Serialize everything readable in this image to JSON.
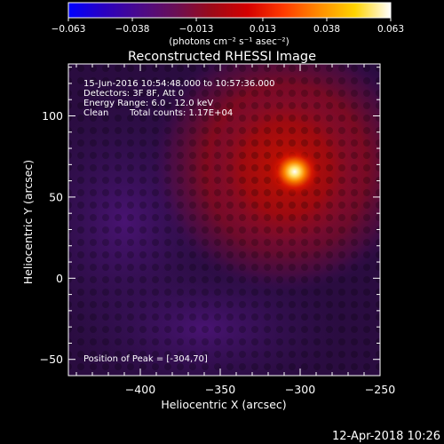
{
  "colorbar": {
    "tick_labels": [
      "−0.063",
      "−0.038",
      "−0.013",
      "0.013",
      "0.038",
      "0.063"
    ],
    "ticks": [
      -0.063,
      -0.038,
      -0.013,
      0.013,
      0.038,
      0.063
    ],
    "range": [
      -0.063,
      0.063
    ],
    "units_text": "(photons cm⁻² s⁻¹ asec⁻²)",
    "colormap": [
      "#0000ff",
      "#2a00c0",
      "#4b0a8a",
      "#6a0f55",
      "#9c0a18",
      "#d40000",
      "#ff3a00",
      "#ff8c00",
      "#ffd400",
      "#ffffff"
    ]
  },
  "header": {
    "title": "Reconstructed RHESSI Image"
  },
  "annotations": {
    "line1": "15-Jun-2016 10:54:48.000 to 10:57:36.000",
    "line2": "Detectors: 3F 8F, Att 0",
    "line3": "Energy Range: 6.0 - 12.0 keV",
    "line4a": "Clean",
    "line4b": "Total counts: 1.17E+04",
    "peak": "Position of Peak = [-304,70]"
  },
  "footer": {
    "timestamp": "12-Apr-2018 10:26"
  },
  "chart_data": {
    "type": "heatmap",
    "title": "Reconstructed RHESSI Image",
    "xlabel": "Heliocentric X (arcsec)",
    "ylabel": "Heliocentric Y (arcsec)",
    "xlim": [
      -445,
      -250
    ],
    "ylim": [
      -60,
      132
    ],
    "x_ticks": [
      -400,
      -350,
      -300,
      -250
    ],
    "y_ticks": [
      -50,
      0,
      50,
      100
    ],
    "x_tick_labels": [
      "−400",
      "−350",
      "−300",
      "−250"
    ],
    "y_tick_labels": [
      "−50",
      "0",
      "50",
      "100"
    ],
    "peak_position": [
      -304,
      70
    ],
    "value_range": [
      -0.063,
      0.063
    ],
    "units": "photons cm-2 s-1 asec-2"
  }
}
